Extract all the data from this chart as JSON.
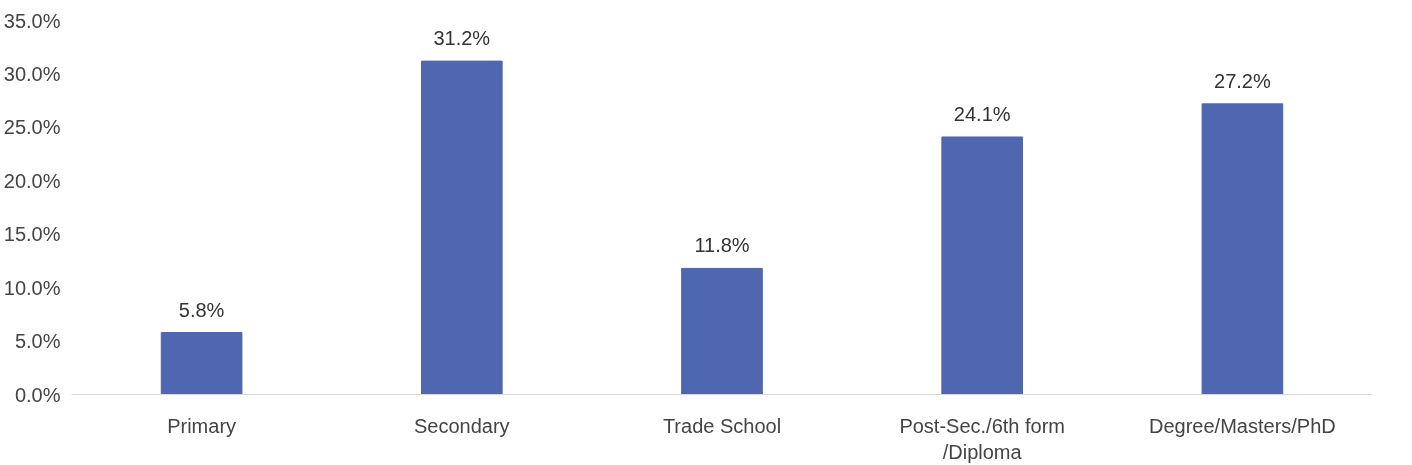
{
  "chart_data": {
    "type": "bar",
    "categories": [
      "Primary",
      "Secondary",
      "Trade School",
      "Post-Sec./6th form\n/Diploma",
      "Degree/Masters/PhD"
    ],
    "values": [
      5.8,
      31.2,
      11.8,
      24.1,
      27.2
    ],
    "value_labels": [
      "5.8%",
      "31.2%",
      "11.8%",
      "24.1%",
      "27.2%"
    ],
    "color": "#4f67b0",
    "ylim": [
      0,
      35
    ],
    "yticks": [
      {
        "value": 0,
        "label": "0.0%"
      },
      {
        "value": 5,
        "label": "5.0%"
      },
      {
        "value": 10,
        "label": "10.0%"
      },
      {
        "value": 15,
        "label": "15.0%"
      },
      {
        "value": 20,
        "label": "20.0%"
      },
      {
        "value": 25,
        "label": "25.0%"
      },
      {
        "value": 30,
        "label": "30.0%"
      },
      {
        "value": 35,
        "label": "35.0%"
      }
    ],
    "grid": false
  }
}
